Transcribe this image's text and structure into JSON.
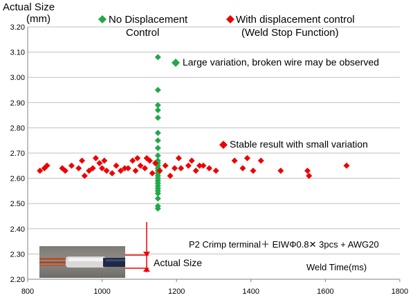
{
  "chart_data": {
    "type": "scatter",
    "ylabel_line1": "Actual Size",
    "ylabel_line2": "(mm)",
    "xlabel": "Weld Time(ms)",
    "xlim": [
      800,
      1800
    ],
    "ylim": [
      2.2,
      3.2
    ],
    "xticks": [
      "800",
      "1000",
      "1200",
      "1400",
      "1600",
      "1800"
    ],
    "yticks": [
      "2.20",
      "2.30",
      "2.40",
      "2.50",
      "2.60",
      "2.70",
      "2.80",
      "2.90",
      "3.00",
      "3.10",
      "3.20"
    ],
    "series": [
      {
        "name": "No Displacement Control",
        "color": "#22a84a",
        "marker": "diamond",
        "points": [
          [
            1150,
            3.08
          ],
          [
            1150,
            2.95
          ],
          [
            1150,
            2.89
          ],
          [
            1150,
            2.87
          ],
          [
            1150,
            2.84
          ],
          [
            1150,
            2.78
          ],
          [
            1150,
            2.75
          ],
          [
            1150,
            2.72
          ],
          [
            1150,
            2.69
          ],
          [
            1150,
            2.67
          ],
          [
            1150,
            2.66
          ],
          [
            1150,
            2.65
          ],
          [
            1150,
            2.64
          ],
          [
            1150,
            2.63
          ],
          [
            1150,
            2.62
          ],
          [
            1150,
            2.61
          ],
          [
            1150,
            2.6
          ],
          [
            1150,
            2.59
          ],
          [
            1150,
            2.58
          ],
          [
            1150,
            2.57
          ],
          [
            1150,
            2.56
          ],
          [
            1150,
            2.55
          ],
          [
            1150,
            2.54
          ],
          [
            1150,
            2.52
          ],
          [
            1150,
            2.49
          ],
          [
            1150,
            2.48
          ]
        ]
      },
      {
        "name": "With displacement control (Weld Stop Function)",
        "color": "#ee0000",
        "marker": "diamond",
        "points": [
          [
            833,
            2.63
          ],
          [
            845,
            2.64
          ],
          [
            852,
            2.65
          ],
          [
            893,
            2.64
          ],
          [
            901,
            2.63
          ],
          [
            918,
            2.65
          ],
          [
            937,
            2.64
          ],
          [
            946,
            2.67
          ],
          [
            953,
            2.61
          ],
          [
            965,
            2.63
          ],
          [
            975,
            2.64
          ],
          [
            983,
            2.68
          ],
          [
            993,
            2.66
          ],
          [
            1000,
            2.64
          ],
          [
            1006,
            2.67
          ],
          [
            1012,
            2.63
          ],
          [
            1027,
            2.62
          ],
          [
            1038,
            2.65
          ],
          [
            1050,
            2.63
          ],
          [
            1061,
            2.64
          ],
          [
            1070,
            2.64
          ],
          [
            1082,
            2.67
          ],
          [
            1090,
            2.63
          ],
          [
            1095,
            2.68
          ],
          [
            1103,
            2.65
          ],
          [
            1115,
            2.64
          ],
          [
            1120,
            2.68
          ],
          [
            1128,
            2.67
          ],
          [
            1135,
            2.62
          ],
          [
            1143,
            2.66
          ],
          [
            1155,
            2.63
          ],
          [
            1170,
            2.65
          ],
          [
            1183,
            2.61
          ],
          [
            1195,
            2.64
          ],
          [
            1206,
            2.68
          ],
          [
            1212,
            2.64
          ],
          [
            1232,
            2.65
          ],
          [
            1241,
            2.67
          ],
          [
            1252,
            2.63
          ],
          [
            1262,
            2.65
          ],
          [
            1272,
            2.65
          ],
          [
            1288,
            2.64
          ],
          [
            1306,
            2.63
          ],
          [
            1356,
            2.67
          ],
          [
            1378,
            2.64
          ],
          [
            1390,
            2.68
          ],
          [
            1406,
            2.63
          ],
          [
            1427,
            2.67
          ],
          [
            1480,
            2.63
          ],
          [
            1552,
            2.63
          ],
          [
            1556,
            2.61
          ],
          [
            1657,
            2.65
          ]
        ]
      }
    ]
  },
  "legend": {
    "green_line1": "No Displacement",
    "green_line2": "Control",
    "red_line1": "With displacement control",
    "red_line2": "(Weld Stop Function)"
  },
  "annotations": {
    "large_variation": "Large variation, broken wire may be observed",
    "stable_result": "Stable result with small variation",
    "condition": "P2 Crimp terminal＋ EIWΦ0.8✕ 3pcs + AWG20",
    "actual_size": "Actual Size"
  }
}
